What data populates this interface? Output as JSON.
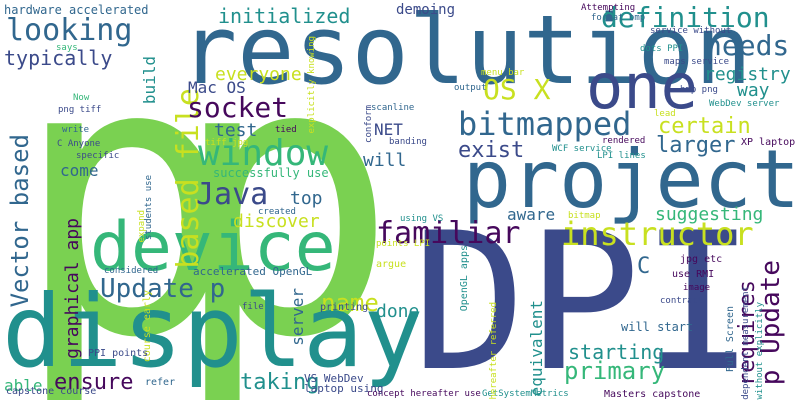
{
  "palette": {
    "purple": "#46085c",
    "indigo": "#3b4a8a",
    "blue": "#31678e",
    "teal": "#21908d",
    "green": "#35b779",
    "lime": "#7ad151",
    "yellow": "#c8e020"
  },
  "words": [
    {
      "text": "p",
      "color": "lime"
    },
    {
      "text": "p",
      "color": "lime"
    },
    {
      "text": "DPI",
      "color": "indigo"
    },
    {
      "text": "resolution",
      "color": "blue"
    },
    {
      "text": "display",
      "color": "teal"
    },
    {
      "text": "project",
      "color": "blue"
    },
    {
      "text": "device",
      "color": "green"
    },
    {
      "text": "one",
      "color": "indigo"
    },
    {
      "text": "window",
      "color": "green"
    },
    {
      "text": "based file",
      "color": "yellow"
    },
    {
      "text": "familiar",
      "color": "purple"
    },
    {
      "text": "instructor",
      "color": "yellow"
    },
    {
      "text": "bitmapped",
      "color": "blue"
    },
    {
      "text": "Vector based",
      "color": "blue"
    },
    {
      "text": "p Update",
      "color": "purple"
    },
    {
      "text": "socket",
      "color": "purple"
    },
    {
      "text": "Java",
      "color": "indigo"
    },
    {
      "text": "looking",
      "color": "blue"
    },
    {
      "text": "OS X",
      "color": "yellow"
    },
    {
      "text": "definition",
      "color": "teal"
    },
    {
      "text": "needs",
      "color": "blue"
    },
    {
      "text": "Update p",
      "color": "blue"
    },
    {
      "text": "certain",
      "color": "yellow"
    },
    {
      "text": "name",
      "color": "yellow"
    },
    {
      "text": "primary",
      "color": "green"
    },
    {
      "text": "starting",
      "color": "teal"
    },
    {
      "text": "ensure",
      "color": "purple"
    },
    {
      "text": "taking",
      "color": "teal"
    },
    {
      "text": "graphical app",
      "color": "purple"
    },
    {
      "text": "requires",
      "color": "purple"
    },
    {
      "text": "exist",
      "color": "indigo"
    },
    {
      "text": "larger",
      "color": "blue"
    },
    {
      "text": "initialized",
      "color": "teal"
    },
    {
      "text": "typically",
      "color": "indigo"
    },
    {
      "text": "everyone",
      "color": "yellow"
    },
    {
      "text": "test",
      "color": "blue"
    },
    {
      "text": "top",
      "color": "blue"
    },
    {
      "text": "done",
      "color": "teal"
    },
    {
      "text": "suggesting",
      "color": "green"
    },
    {
      "text": "registry",
      "color": "teal"
    },
    {
      "text": "way",
      "color": "teal"
    },
    {
      "text": "discover",
      "color": "yellow"
    },
    {
      "text": "will",
      "color": "blue"
    },
    {
      "text": "aware",
      "color": "blue"
    },
    {
      "text": "come",
      "color": "blue"
    },
    {
      "text": "able",
      "color": "green"
    },
    {
      "text": "server",
      "color": "blue"
    },
    {
      "text": "equivalent",
      "color": "teal"
    },
    {
      "text": "C",
      "color": "blue"
    },
    {
      "text": "Mac OS",
      "color": "indigo"
    },
    {
      "text": "build",
      "color": "teal"
    },
    {
      "text": "NET",
      "color": "indigo"
    },
    {
      "text": "demoing",
      "color": "indigo"
    },
    {
      "text": "hardware accelerated",
      "color": "blue"
    },
    {
      "text": "successfully use",
      "color": "green"
    },
    {
      "text": "accelerated OpenGL",
      "color": "blue"
    },
    {
      "text": "Full Screen",
      "color": "blue"
    },
    {
      "text": "will start",
      "color": "blue"
    },
    {
      "text": "VS WebDev",
      "color": "indigo"
    },
    {
      "text": "laptop using",
      "color": "indigo"
    },
    {
      "text": "capstone course",
      "color": "indigo"
    },
    {
      "text": "Masters capstone",
      "color": "purple"
    },
    {
      "text": "concept hereafter use",
      "color": "purple"
    },
    {
      "text": "GetSystemMetrics",
      "color": "teal"
    },
    {
      "text": "course early",
      "color": "yellow"
    },
    {
      "text": "PPI points",
      "color": "indigo"
    },
    {
      "text": "refer",
      "color": "blue"
    },
    {
      "text": "file",
      "color": "indigo"
    },
    {
      "text": "printing",
      "color": "indigo"
    },
    {
      "text": "points LPI",
      "color": "yellow"
    },
    {
      "text": "argue",
      "color": "yellow"
    },
    {
      "text": "using VS",
      "color": "teal"
    },
    {
      "text": "OpenGL apps",
      "color": "teal"
    },
    {
      "text": "hereafter referred",
      "color": "yellow"
    },
    {
      "text": "contract",
      "color": "indigo"
    },
    {
      "text": "image",
      "color": "purple"
    },
    {
      "text": "use RMI",
      "color": "purple"
    },
    {
      "text": "jpg etc",
      "color": "purple"
    },
    {
      "text": "dependent measurement",
      "color": "indigo"
    },
    {
      "text": "without explicitly",
      "color": "teal"
    },
    {
      "text": "XP laptop",
      "color": "purple"
    },
    {
      "text": "WebDev server",
      "color": "teal"
    },
    {
      "text": "bmp png",
      "color": "indigo"
    },
    {
      "text": "maps service",
      "color": "indigo"
    },
    {
      "text": "dots PPI",
      "color": "teal"
    },
    {
      "text": "service without",
      "color": "indigo"
    },
    {
      "text": "format bmp",
      "color": "blue"
    },
    {
      "text": "Attempting",
      "color": "purple"
    },
    {
      "text": "menu bar",
      "color": "yellow"
    },
    {
      "text": "output",
      "color": "blue"
    },
    {
      "text": "lead",
      "color": "yellow"
    },
    {
      "text": "rendered",
      "color": "purple"
    },
    {
      "text": "LPI lines",
      "color": "teal"
    },
    {
      "text": "WCF service",
      "color": "teal"
    },
    {
      "text": "conform",
      "color": "indigo"
    },
    {
      "text": "banding",
      "color": "indigo"
    },
    {
      "text": "scanline",
      "color": "blue"
    },
    {
      "text": "explicitly knowing",
      "color": "yellow"
    },
    {
      "text": "tied",
      "color": "purple"
    },
    {
      "text": "tiff jpg",
      "color": "yellow"
    },
    {
      "text": "students use",
      "color": "blue"
    },
    {
      "text": "expand",
      "color": "yellow"
    },
    {
      "text": "created",
      "color": "blue"
    },
    {
      "text": "considered",
      "color": "blue"
    },
    {
      "text": "bitmap",
      "color": "yellow"
    },
    {
      "text": "says",
      "color": "green"
    },
    {
      "text": "png tiff",
      "color": "indigo"
    },
    {
      "text": "Now",
      "color": "green"
    },
    {
      "text": "write",
      "color": "blue"
    },
    {
      "text": "C Anyone",
      "color": "indigo"
    },
    {
      "text": "specific",
      "color": "indigo"
    }
  ]
}
